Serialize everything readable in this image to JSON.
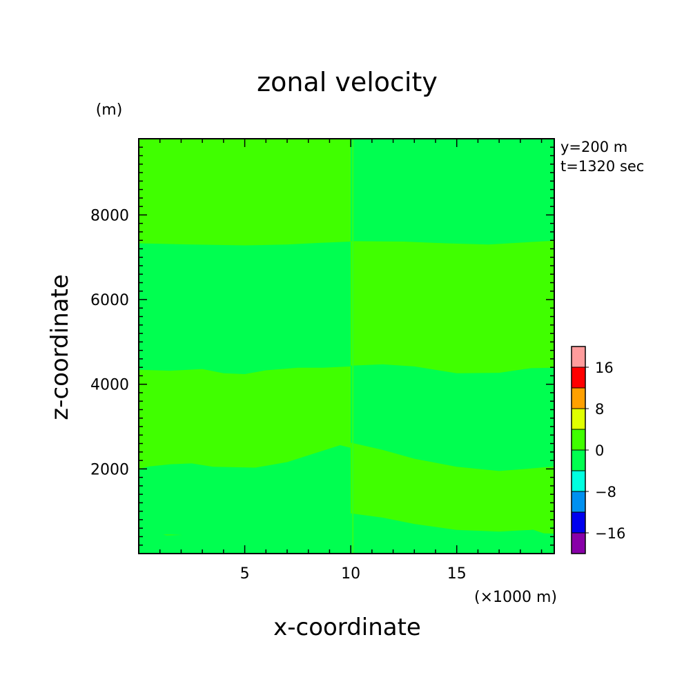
{
  "chart_data": {
    "type": "heatmap",
    "title": "zonal velocity",
    "xlabel": "x-coordinate",
    "ylabel": "z-coordinate",
    "x_unit": "(×1000 m)",
    "y_unit": "(m)",
    "annotations": [
      "y=200 m",
      "t=1320 sec"
    ],
    "xlim": [
      0,
      19.6
    ],
    "ylim": [
      0,
      9800
    ],
    "x_ticks": [
      5,
      10,
      15
    ],
    "y_ticks": [
      2000,
      4000,
      6000,
      8000
    ],
    "grid": false,
    "fields": {
      "left": {
        "x_range": [
          0,
          10
        ],
        "bands": [
          {
            "value": 0,
            "color": "#40ff00",
            "boundary": [
              [
                0,
                300
              ],
              [
                0.5,
                450
              ],
              [
                1.5,
                450
              ],
              [
                3,
                420
              ],
              [
                5,
                390
              ],
              [
                7,
                360
              ],
              [
                8.5,
                260
              ],
              [
                9.4,
                250
              ],
              [
                10,
                260
              ]
            ]
          },
          {
            "value": -4,
            "color": "#00ff50",
            "boundary": [
              [
                0,
                2000
              ],
              [
                0.5,
                2060
              ],
              [
                1.5,
                2110
              ],
              [
                2.5,
                2130
              ],
              [
                3.5,
                2050
              ],
              [
                5.5,
                2030
              ],
              [
                7,
                2160
              ],
              [
                8.5,
                2400
              ],
              [
                9.5,
                2560
              ],
              [
                10,
                2500
              ]
            ]
          },
          {
            "value": 0,
            "color": "#40ff00",
            "boundary": [
              [
                0,
                4340
              ],
              [
                1.5,
                4320
              ],
              [
                3,
                4360
              ],
              [
                4,
                4260
              ],
              [
                5,
                4240
              ],
              [
                6,
                4330
              ],
              [
                7.5,
                4390
              ],
              [
                8.7,
                4390
              ],
              [
                10,
                4420
              ]
            ]
          },
          {
            "value": -4,
            "color": "#00ff50",
            "boundary": [
              [
                0,
                7330
              ],
              [
                2.5,
                7300
              ],
              [
                5,
                7280
              ],
              [
                7,
                7300
              ],
              [
                8.5,
                7340
              ],
              [
                10,
                7370
              ]
            ]
          },
          {
            "value": 0,
            "color": "#40ff00",
            "boundary": [
              [
                0,
                9800
              ],
              [
                10,
                9800
              ]
            ]
          }
        ],
        "patches": [
          {
            "value": -4,
            "color": "#00ff50",
            "outline": [
              [
                0,
                500
              ],
              [
                0.7,
                520
              ],
              [
                1.3,
                430
              ],
              [
                3,
                450
              ],
              [
                5,
                470
              ],
              [
                7.5,
                600
              ],
              [
                8.7,
                780
              ],
              [
                9.4,
                900
              ],
              [
                10,
                880
              ],
              [
                10,
                0
              ],
              [
                0,
                0
              ]
            ]
          }
        ]
      },
      "right": {
        "x_range": [
          10,
          19.6
        ],
        "bands": [
          {
            "value": -4,
            "color": "#00ff50",
            "boundary": [
              [
                10,
                950
              ],
              [
                11.5,
                850
              ],
              [
                13,
                700
              ],
              [
                15,
                560
              ],
              [
                17,
                520
              ],
              [
                18.5,
                560
              ],
              [
                19.6,
                640
              ]
            ]
          },
          {
            "value": 0,
            "color": "#40ff00",
            "boundary": [
              [
                10,
                2620
              ],
              [
                11.5,
                2450
              ],
              [
                13,
                2240
              ],
              [
                15,
                2050
              ],
              [
                17,
                1950
              ],
              [
                18.3,
                2000
              ],
              [
                19.6,
                2060
              ]
            ]
          },
          {
            "value": -4,
            "color": "#00ff50",
            "boundary": [
              [
                10,
                4440
              ],
              [
                11.5,
                4470
              ],
              [
                13,
                4420
              ],
              [
                15,
                4260
              ],
              [
                17,
                4270
              ],
              [
                18.5,
                4380
              ],
              [
                19.6,
                4390
              ]
            ]
          },
          {
            "value": 0,
            "color": "#40ff00",
            "boundary": [
              [
                10,
                7380
              ],
              [
                12.5,
                7370
              ],
              [
                14.5,
                7330
              ],
              [
                16.5,
                7300
              ],
              [
                18.5,
                7360
              ],
              [
                19.6,
                7390
              ]
            ]
          },
          {
            "value": -4,
            "color": "#00ff50",
            "boundary": [
              [
                10,
                9800
              ],
              [
                19.6,
                9800
              ]
            ]
          }
        ],
        "patches": [
          {
            "value": 0,
            "color": "#40ff00",
            "outline": [
              [
                18.5,
                580
              ],
              [
                19.1,
                480
              ],
              [
                19.6,
                470
              ],
              [
                19.6,
                620
              ],
              [
                18.7,
                620
              ]
            ]
          }
        ],
        "base_color": "#00ff50"
      },
      "seam_x": 10.1
    },
    "colorbar": {
      "colors": [
        "#8800a8",
        "#0000ee",
        "#0090f0",
        "#00ffe0",
        "#00ff50",
        "#40ff00",
        "#e0ff00",
        "#ffa000",
        "#ff0000",
        "#ff9c9c"
      ],
      "labels": [
        "−16",
        "−8",
        "0",
        "8",
        "16"
      ]
    }
  }
}
